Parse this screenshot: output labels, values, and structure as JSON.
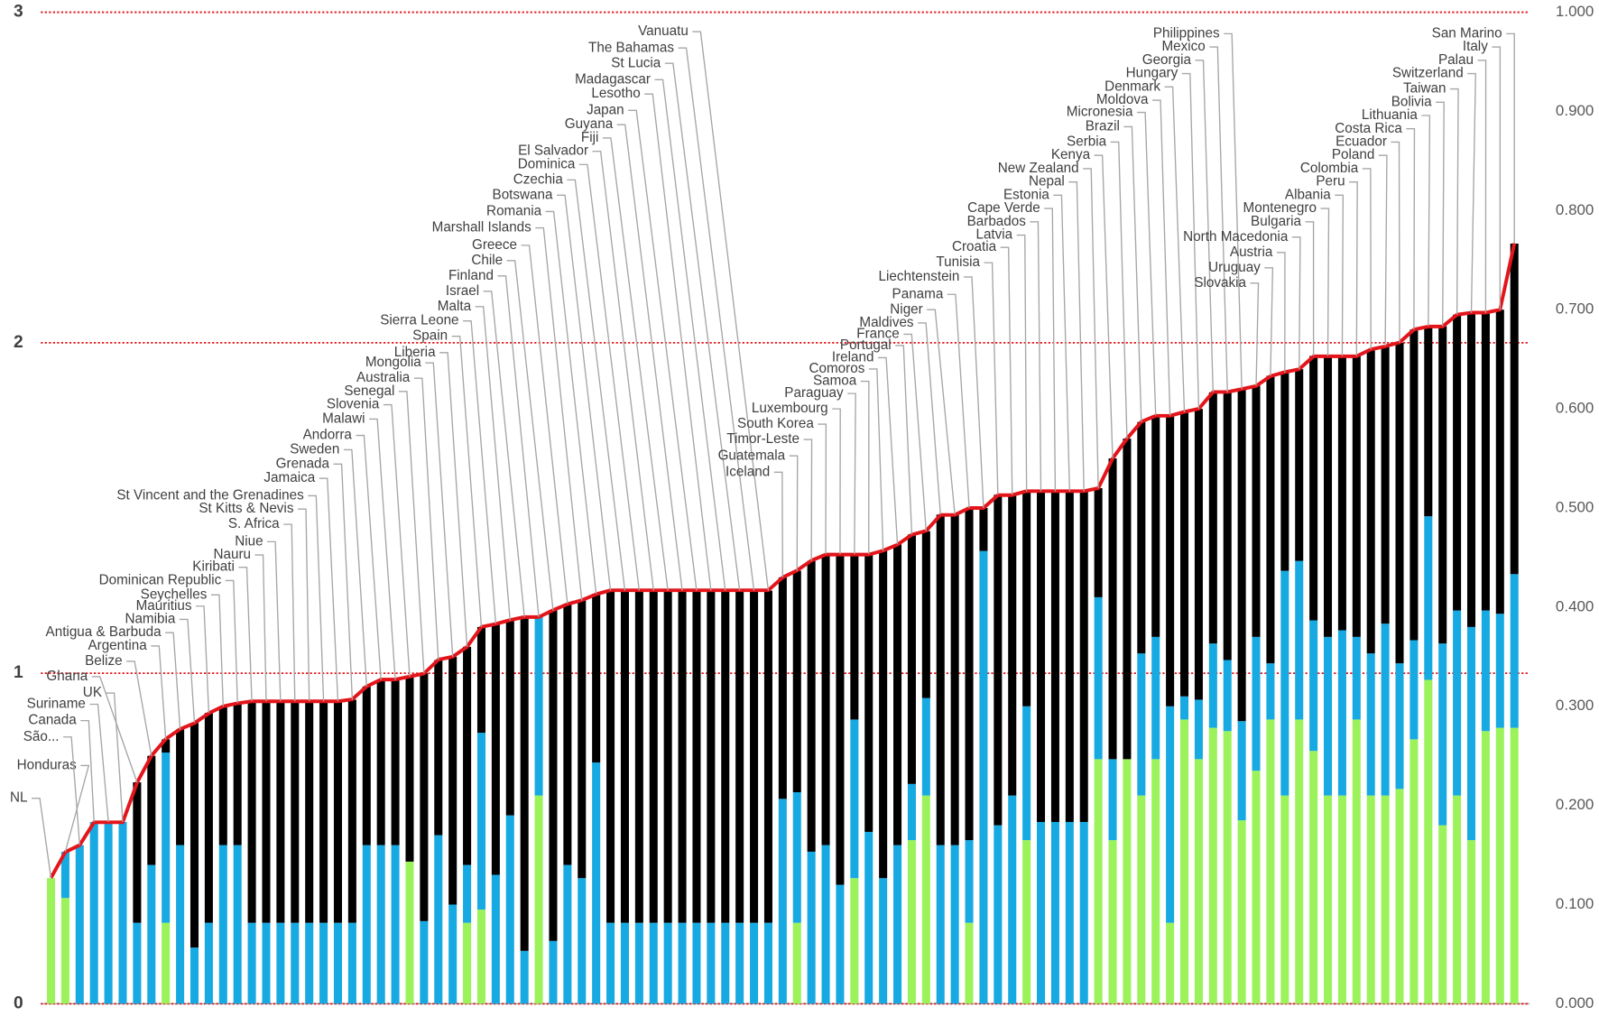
{
  "chart_data": {
    "type": "bar",
    "stacked": true,
    "categories": [
      "NL",
      "Honduras",
      "São...",
      "Canada",
      "Suriname",
      "UK",
      "Ghana",
      "Belize",
      "Argentina",
      "Antigua & Barbuda",
      "Namibia",
      "Mauritius",
      "Seychelles",
      "Dominican Republic",
      "Kiribati",
      "Nauru",
      "Niue",
      "S. Africa",
      "St Kitts & Nevis",
      "St Vincent and the Grenadines",
      "Jamaica",
      "Grenada",
      "Sweden",
      "Andorra",
      "Malawi",
      "Slovenia",
      "Senegal",
      "Australia",
      "Mongolia",
      "Liberia",
      "Spain",
      "Sierra Leone",
      "Malta",
      "Israel",
      "Finland",
      "Chile",
      "Greece",
      "Marshall Islands",
      "Romania",
      "Botswana",
      "Czechia",
      "Dominica",
      "El Salvador",
      "Fiji",
      "Guyana",
      "Japan",
      "Lesotho",
      "Madagascar",
      "St Lucia",
      "The Bahamas",
      "Vanuatu",
      "Iceland",
      "Guatemala",
      "Timor-Leste",
      "South Korea",
      "Luxembourg",
      "Paraguay",
      "Samoa",
      "Comoros",
      "Ireland",
      "Portugal",
      "France",
      "Maldives",
      "Niger",
      "Panama",
      "Liechtenstein",
      "Tunisia",
      "Croatia",
      "Latvia",
      "Barbados",
      "Cape Verde",
      "Estonia",
      "Nepal",
      "New Zealand",
      "Kenya",
      "Serbia",
      "Brazil",
      "Micronesia",
      "Moldova",
      "Denmark",
      "Hungary",
      "Georgia",
      "Mexico",
      "Philippines",
      "Slovakia",
      "Uruguay",
      "Austria",
      "North Macedonia",
      "Bulgaria",
      "Montenegro",
      "Albania",
      "Peru",
      "Colombia",
      "Poland",
      "Ecuador",
      "Costa Rica",
      "Lithuania",
      "Bolivia",
      "Taiwan",
      "Switzerland",
      "Palau",
      "Italy",
      "San Marino"
    ],
    "series": [
      {
        "color": "#9cf25a",
        "values": [
          0.38,
          0.32,
          0,
          0,
          0,
          0,
          0,
          0,
          0.245,
          0,
          0,
          0,
          0,
          0,
          0,
          0,
          0,
          0,
          0,
          0,
          0,
          0,
          0,
          0,
          0,
          0.43,
          0,
          0,
          0,
          0.245,
          0.285,
          0,
          0,
          0,
          0.63,
          0,
          0,
          0,
          0,
          0,
          0,
          0,
          0,
          0,
          0,
          0,
          0,
          0,
          0,
          0,
          0,
          0,
          0.245,
          0,
          0,
          0,
          0.38,
          0,
          0,
          0,
          0.495,
          0.63,
          0,
          0,
          0.245,
          0,
          0,
          0,
          0.495,
          0,
          0,
          0,
          0,
          0.74,
          0.495,
          0.74,
          0.63,
          0.74,
          0.245,
          0.86,
          0.74,
          0.835,
          0.825,
          0.555,
          0.705,
          0.86,
          0.63,
          0.86,
          0.765,
          0.63,
          0.63,
          0.86,
          0.63,
          0.63,
          0.65,
          0.8,
          0.98,
          0.54,
          0.63,
          0.495,
          0.825,
          0.835,
          0.835
        ]
      },
      {
        "color": "#17a9e1",
        "values": [
          0,
          0.14,
          0.48,
          0.55,
          0.55,
          0.55,
          0.245,
          0.42,
          0.515,
          0.48,
          0.17,
          0.245,
          0.48,
          0.48,
          0.245,
          0.245,
          0.245,
          0.245,
          0.245,
          0.245,
          0.245,
          0.245,
          0.48,
          0.48,
          0.48,
          0,
          0.25,
          0.51,
          0.3,
          0.175,
          0.535,
          0.39,
          0.57,
          0.16,
          0.54,
          0.19,
          0.42,
          0.38,
          0.73,
          0.245,
          0.245,
          0.245,
          0.245,
          0.245,
          0.245,
          0.245,
          0.245,
          0.245,
          0.245,
          0.245,
          0.245,
          0.62,
          0.395,
          0.46,
          0.48,
          0.36,
          0.48,
          0.52,
          0.38,
          0.48,
          0.17,
          0.295,
          0.48,
          0.48,
          0.25,
          1.37,
          0.54,
          0.63,
          0.405,
          0.55,
          0.55,
          0.55,
          0.55,
          0.49,
          0.245,
          0,
          0.43,
          0.37,
          0.655,
          0.07,
          0.18,
          0.255,
          0.215,
          0.3,
          0.405,
          0.17,
          0.68,
          0.48,
          0.395,
          0.48,
          0.5,
          0.25,
          0.43,
          0.52,
          0.38,
          0.3,
          0.495,
          0.55,
          0.56,
          0.645,
          0.365,
          0.345,
          0.465
        ]
      },
      {
        "color": "#000000",
        "values": [
          0,
          0,
          0,
          0,
          0,
          0,
          0.425,
          0.33,
          0.04,
          0.35,
          0.68,
          0.635,
          0.42,
          0.43,
          0.67,
          0.67,
          0.67,
          0.67,
          0.67,
          0.67,
          0.67,
          0.675,
          0.48,
          0.5,
          0.5,
          0.56,
          0.75,
          0.53,
          0.75,
          0.66,
          0.32,
          0.76,
          0.59,
          1.01,
          0,
          1,
          0.79,
          0.84,
          0.51,
          1.005,
          1.005,
          1.005,
          1.005,
          1.005,
          1.005,
          1.005,
          1.005,
          1.005,
          1.005,
          1.005,
          1.005,
          0.67,
          0.67,
          0.88,
          0.88,
          1,
          0.5,
          0.84,
          0.99,
          0.91,
          0.755,
          0.505,
          1,
          1,
          1.005,
          0.13,
          1,
          0.91,
          0.65,
          1,
          1,
          1,
          1,
          0.33,
          0.91,
          0.97,
          0.7,
          0.67,
          0.88,
          0.86,
          0.88,
          0.76,
          0.81,
          1.005,
          0.76,
          0.87,
          0.6,
          0.58,
          0.8,
          0.85,
          0.83,
          0.85,
          0.92,
          0.84,
          0.97,
          0.94,
          0.575,
          0.96,
          0.895,
          0.95,
          0.9,
          0.92,
          1
        ]
      },
      {
        "color": "#e3151a",
        "type": "line",
        "axis": "y2",
        "values": [
          0.127,
          0.153,
          0.16,
          0.183,
          0.183,
          0.183,
          0.223,
          0.25,
          0.267,
          0.277,
          0.283,
          0.293,
          0.3,
          0.303,
          0.305,
          0.305,
          0.305,
          0.305,
          0.305,
          0.305,
          0.305,
          0.307,
          0.32,
          0.327,
          0.327,
          0.33,
          0.333,
          0.347,
          0.35,
          0.36,
          0.38,
          0.383,
          0.387,
          0.39,
          0.39,
          0.397,
          0.403,
          0.407,
          0.413,
          0.417,
          0.417,
          0.417,
          0.417,
          0.417,
          0.417,
          0.417,
          0.417,
          0.417,
          0.417,
          0.417,
          0.417,
          0.43,
          0.437,
          0.447,
          0.453,
          0.453,
          0.453,
          0.453,
          0.457,
          0.463,
          0.473,
          0.477,
          0.493,
          0.493,
          0.5,
          0.5,
          0.513,
          0.513,
          0.517,
          0.517,
          0.517,
          0.517,
          0.517,
          0.52,
          0.55,
          0.57,
          0.587,
          0.593,
          0.593,
          0.597,
          0.6,
          0.617,
          0.617,
          0.62,
          0.623,
          0.633,
          0.637,
          0.64,
          0.653,
          0.653,
          0.653,
          0.653,
          0.66,
          0.663,
          0.667,
          0.68,
          0.683,
          0.683,
          0.695,
          0.697,
          0.697,
          0.7,
          0.767
        ]
      }
    ],
    "ylim": [
      0,
      3
    ],
    "yticks": [
      0,
      1,
      2,
      3
    ],
    "y2lim": [
      0,
      1
    ],
    "y2ticks": [
      {
        "value": 0,
        "label": "0.000"
      },
      {
        "value": 0.1,
        "label": "0.100"
      },
      {
        "value": 0.2,
        "label": "0.200"
      },
      {
        "value": 0.3,
        "label": "0.300"
      },
      {
        "value": 0.4,
        "label": "0.400"
      },
      {
        "value": 0.5,
        "label": "0.500"
      },
      {
        "value": 0.6,
        "label": "0.600"
      },
      {
        "value": 0.7,
        "label": "0.700"
      },
      {
        "value": 0.8,
        "label": "0.800"
      },
      {
        "value": 0.9,
        "label": "0.900"
      },
      {
        "value": 1,
        "label": "1.000"
      }
    ],
    "grid": true,
    "grid_color": "#e3151a"
  }
}
